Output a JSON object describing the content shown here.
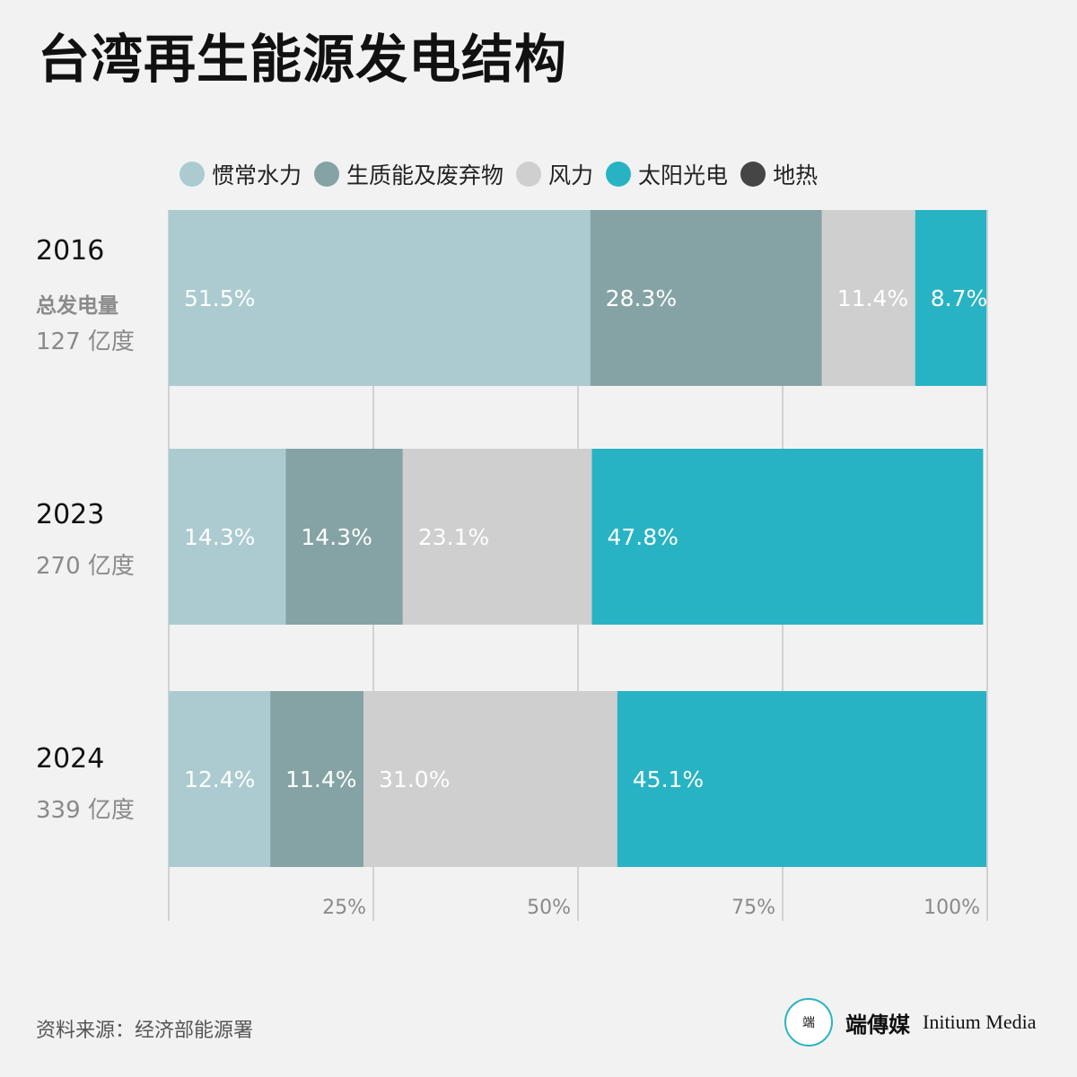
{
  "title": "台湾再生能源发电结构",
  "legend": [
    {
      "label": "惯常水力",
      "color": "#abcbd0"
    },
    {
      "label": "生质能及废弃物",
      "color": "#85a3a4"
    },
    {
      "label": "风力",
      "color": "#cfcfcf"
    },
    {
      "label": "太阳光电",
      "color": "#27b3c4"
    },
    {
      "label": "地热",
      "color": "#454545"
    }
  ],
  "rows": [
    {
      "year": "2016",
      "total_label": "总发电量",
      "total": "127 亿度"
    },
    {
      "year": "2023",
      "total_label": "",
      "total": "270 亿度"
    },
    {
      "year": "2024",
      "total_label": "",
      "total": "339 亿度"
    }
  ],
  "chart_data": {
    "type": "bar",
    "orientation": "horizontal",
    "stacked": true,
    "categories": [
      "2016",
      "2023",
      "2024"
    ],
    "series": [
      {
        "name": "惯常水力",
        "values": [
          51.5,
          14.3,
          12.4
        ],
        "labels": [
          "51.5%",
          "14.3%",
          "12.4%"
        ]
      },
      {
        "name": "生质能及废弃物",
        "values": [
          28.3,
          14.3,
          11.4
        ],
        "labels": [
          "28.3%",
          "14.3%",
          "11.4%"
        ]
      },
      {
        "name": "风力",
        "values": [
          11.4,
          23.1,
          31.0
        ],
        "labels": [
          "11.4%",
          "23.1%",
          "31.0%"
        ]
      },
      {
        "name": "太阳光电",
        "values": [
          8.7,
          47.8,
          45.1
        ],
        "labels": [
          "8.7%",
          "47.8%",
          "45.1%"
        ]
      },
      {
        "name": "地热",
        "values": [
          0,
          0,
          0
        ],
        "labels": [
          "",
          "",
          ""
        ]
      }
    ],
    "xlim": [
      0,
      100
    ],
    "xticks": [
      25,
      50,
      75,
      100
    ],
    "xtick_labels": [
      "25%",
      "50%",
      "75%",
      "100%"
    ],
    "grid": true,
    "legend_position": "top"
  },
  "source": "资料来源：经济部能源署",
  "brand": {
    "logo_text": "端",
    "name_cn": "端傳媒",
    "name_en": "Initium Media"
  }
}
